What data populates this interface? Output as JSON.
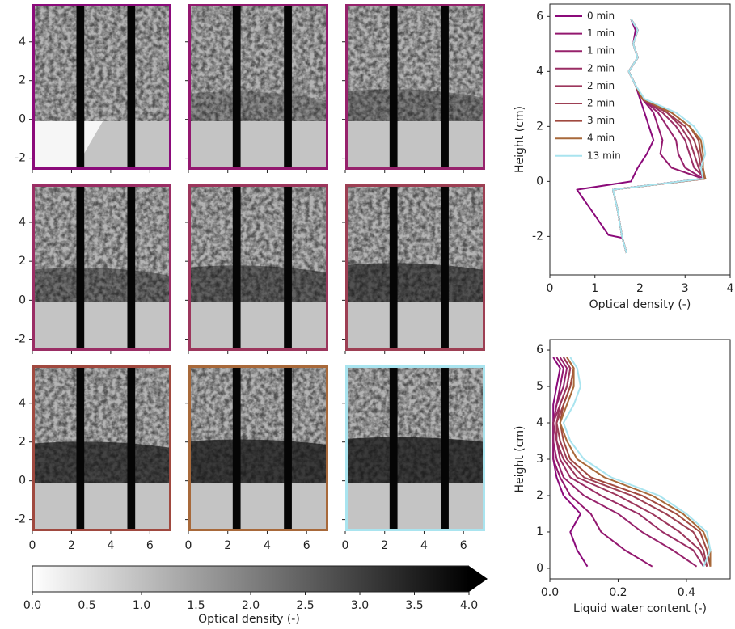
{
  "chart_data": [
    {
      "type": "image",
      "xlim": [
        0,
        7.1
      ],
      "ylim": [
        -2.6,
        5.95
      ],
      "xticks": [
        0,
        2,
        4,
        6
      ],
      "yticks": [
        -2,
        0,
        2,
        4
      ],
      "panel_colors": [
        "#8b0a7a",
        "#93186f",
        "#97226c",
        "#9a2d64",
        "#9c365c",
        "#9d3f53",
        "#a0493f",
        "#a8693a",
        "#a9e4ef"
      ]
    },
    {
      "type": "colorbar",
      "xlim": [
        0,
        4
      ],
      "label": "Optical density (-)",
      "xticks": [
        {
          "value": 0,
          "label": "0.0"
        },
        0.5,
        {
          "value": 1,
          "label": "1.0"
        },
        1.5,
        {
          "value": 2,
          "label": "2.0"
        },
        2.5,
        {
          "value": 3,
          "label": "3.0"
        },
        3.5,
        {
          "value": 4,
          "label": "4.0"
        }
      ]
    },
    {
      "type": "line",
      "xlabel": "Optical density (-)",
      "ylabel": "Height (cm)",
      "xlim": [
        0,
        4
      ],
      "ylim": [
        -3.4,
        6.45
      ],
      "xticks": [
        0,
        1,
        2,
        3,
        4
      ],
      "yticks": [
        -2,
        0,
        2,
        4,
        6
      ],
      "legend": "upper left",
      "series": [
        {
          "name": "0 min",
          "color": "#8b0a7a",
          "y": [
            5.9,
            5.5,
            5,
            4.5,
            4,
            3.5,
            3,
            2.5,
            2,
            1.5,
            1,
            0.5,
            0,
            -0.3,
            -1,
            -1.95,
            -2.05
          ],
          "x": [
            1.8,
            1.9,
            1.85,
            1.95,
            1.75,
            1.9,
            2.0,
            2.1,
            2.2,
            2.3,
            2.15,
            1.95,
            1.8,
            0.6,
            0.9,
            1.3,
            1.6
          ]
        },
        {
          "name": "1 min",
          "color": "#93186f",
          "y": [
            5.9,
            5.5,
            5,
            4.5,
            4,
            3.5,
            3,
            2.5,
            2,
            1.5,
            1,
            0.5,
            0.1,
            -0.3,
            -1,
            -2,
            -2.6
          ],
          "x": [
            1.8,
            1.95,
            1.85,
            1.95,
            1.75,
            1.9,
            2.05,
            2.3,
            2.4,
            2.5,
            2.45,
            2.7,
            3.4,
            1.4,
            1.5,
            1.6,
            1.7
          ]
        },
        {
          "name": "1 min",
          "color": "#97226c",
          "y": [
            5.9,
            5.5,
            5,
            4.5,
            4,
            3.5,
            3,
            2.5,
            2,
            1.5,
            1,
            0.5,
            0.1,
            -0.3,
            -1,
            -2,
            -2.6
          ],
          "x": [
            1.8,
            1.95,
            1.85,
            1.95,
            1.75,
            1.9,
            2.05,
            2.4,
            2.6,
            2.8,
            2.85,
            3.0,
            3.4,
            1.4,
            1.5,
            1.6,
            1.7
          ]
        },
        {
          "name": "2 min",
          "color": "#9a2d64",
          "y": [
            5.9,
            5.5,
            5,
            4.5,
            4,
            3.5,
            3,
            2.5,
            2,
            1.5,
            1,
            0.5,
            0.1,
            -0.3,
            -1,
            -2,
            -2.6
          ],
          "x": [
            1.8,
            1.95,
            1.85,
            1.95,
            1.75,
            1.9,
            2.05,
            2.5,
            2.8,
            3.0,
            3.1,
            3.2,
            3.45,
            1.4,
            1.5,
            1.6,
            1.7
          ]
        },
        {
          "name": "2 min",
          "color": "#9c365c",
          "y": [
            5.9,
            5.5,
            5,
            4.5,
            4,
            3.5,
            3,
            2.5,
            2,
            1.5,
            1,
            0.5,
            0.1,
            -0.3,
            -1,
            -2,
            -2.6
          ],
          "x": [
            1.8,
            1.95,
            1.85,
            1.95,
            1.75,
            1.9,
            2.05,
            2.6,
            2.9,
            3.1,
            3.2,
            3.3,
            3.4,
            1.4,
            1.5,
            1.6,
            1.7
          ]
        },
        {
          "name": "2 min",
          "color": "#9d3f53",
          "y": [
            5.9,
            5.5,
            5,
            4.5,
            4,
            3.5,
            3,
            2.5,
            2,
            1.5,
            1,
            0.5,
            0.1,
            -0.3,
            -1,
            -2,
            -2.6
          ],
          "x": [
            1.8,
            1.95,
            1.85,
            1.95,
            1.75,
            1.9,
            2.05,
            2.6,
            3.0,
            3.2,
            3.3,
            3.35,
            3.45,
            1.4,
            1.5,
            1.6,
            1.7
          ]
        },
        {
          "name": "3 min",
          "color": "#a0493f",
          "y": [
            5.9,
            5.5,
            5,
            4.5,
            4,
            3.5,
            3,
            2.5,
            2,
            1.5,
            1,
            0.5,
            0.1,
            -0.3,
            -1,
            -2,
            -2.6
          ],
          "x": [
            1.8,
            1.95,
            1.85,
            1.95,
            1.75,
            1.9,
            2.05,
            2.7,
            3.1,
            3.3,
            3.35,
            3.4,
            3.4,
            1.4,
            1.5,
            1.6,
            1.7
          ]
        },
        {
          "name": "4 min",
          "color": "#a8693a",
          "y": [
            5.9,
            5.5,
            5,
            4.5,
            4,
            3.5,
            3,
            2.5,
            2,
            1.5,
            1,
            0.5,
            0.1,
            -0.3,
            -1,
            -2,
            -2.6
          ],
          "x": [
            1.8,
            1.95,
            1.85,
            1.95,
            1.75,
            1.9,
            2.05,
            2.7,
            3.1,
            3.35,
            3.4,
            3.4,
            3.45,
            1.4,
            1.5,
            1.6,
            1.7
          ]
        },
        {
          "name": "13 min",
          "color": "#a9e4ef",
          "y": [
            5.9,
            5.5,
            5,
            4.5,
            4,
            3.5,
            3,
            2.5,
            2,
            1.5,
            1,
            0.5,
            0.1,
            -0.3,
            -1,
            -2,
            -2.6
          ],
          "x": [
            1.8,
            1.95,
            1.85,
            1.95,
            1.75,
            1.9,
            2.1,
            2.8,
            3.2,
            3.4,
            3.45,
            3.35,
            3.4,
            1.4,
            1.5,
            1.6,
            1.7
          ]
        }
      ]
    },
    {
      "type": "line",
      "xlabel": "Liquid water content (-)",
      "ylabel": "Height (cm)",
      "xlim": [
        0,
        0.528
      ],
      "ylim": [
        -0.29,
        6.29
      ],
      "xticks": [
        {
          "value": 0,
          "label": "0.0"
        },
        0.2,
        0.4
      ],
      "yticks": [
        0,
        1,
        2,
        3,
        4,
        5,
        6
      ],
      "series": [
        {
          "name": "0 min",
          "color": "#8b0a7a",
          "y": [
            0.05,
            0.5,
            1,
            1.5,
            2,
            2.5,
            3,
            3.5,
            4,
            4.5,
            5,
            5.5,
            5.8
          ],
          "x": [
            0.11,
            0.08,
            0.06,
            0.09,
            0.04,
            0.02,
            0.01,
            0.01,
            0.01,
            0.01,
            0.02,
            0.03,
            0.01
          ]
        },
        {
          "name": "1 min",
          "color": "#93186f",
          "y": [
            0.05,
            0.5,
            1,
            1.5,
            2,
            2.5,
            3,
            3.5,
            4,
            4.5,
            5,
            5.5,
            5.8
          ],
          "x": [
            0.3,
            0.22,
            0.15,
            0.12,
            0.06,
            0.03,
            0.01,
            0.01,
            0.01,
            0.02,
            0.03,
            0.04,
            0.02
          ]
        },
        {
          "name": "1 min",
          "color": "#97226c",
          "y": [
            0.05,
            0.5,
            1,
            1.5,
            2,
            2.5,
            3,
            3.5,
            4,
            4.5,
            5,
            5.5,
            5.8
          ],
          "x": [
            0.43,
            0.36,
            0.27,
            0.2,
            0.1,
            0.04,
            0.02,
            0.01,
            0.01,
            0.02,
            0.04,
            0.05,
            0.03
          ]
        },
        {
          "name": "2 min",
          "color": "#9a2d64",
          "y": [
            0.05,
            0.5,
            1,
            1.5,
            2,
            2.5,
            3,
            3.5,
            4,
            4.5,
            5,
            5.5,
            5.8
          ],
          "x": [
            0.45,
            0.42,
            0.33,
            0.26,
            0.15,
            0.06,
            0.03,
            0.02,
            0.01,
            0.03,
            0.05,
            0.06,
            0.04
          ]
        },
        {
          "name": "2 min",
          "color": "#9c365c",
          "y": [
            0.05,
            0.5,
            1,
            1.5,
            2,
            2.5,
            3,
            3.5,
            4,
            4.5,
            5,
            5.5,
            5.8
          ],
          "x": [
            0.46,
            0.44,
            0.38,
            0.3,
            0.2,
            0.08,
            0.04,
            0.02,
            0.02,
            0.03,
            0.05,
            0.06,
            0.04
          ]
        },
        {
          "name": "2 min",
          "color": "#9d3f53",
          "y": [
            0.05,
            0.5,
            1,
            1.5,
            2,
            2.5,
            3,
            3.5,
            4,
            4.5,
            5,
            5.5,
            5.8
          ],
          "x": [
            0.46,
            0.45,
            0.42,
            0.34,
            0.24,
            0.1,
            0.05,
            0.03,
            0.02,
            0.04,
            0.06,
            0.07,
            0.05
          ]
        },
        {
          "name": "3 min",
          "color": "#a0493f",
          "y": [
            0.05,
            0.5,
            1,
            1.5,
            2,
            2.5,
            3,
            3.5,
            4,
            4.5,
            5,
            5.5,
            5.8
          ],
          "x": [
            0.47,
            0.46,
            0.44,
            0.37,
            0.27,
            0.12,
            0.06,
            0.04,
            0.03,
            0.04,
            0.06,
            0.07,
            0.05
          ]
        },
        {
          "name": "4 min",
          "color": "#a8693a",
          "y": [
            0.05,
            0.5,
            1,
            1.5,
            2,
            2.5,
            3,
            3.5,
            4,
            4.5,
            5,
            5.5,
            5.8
          ],
          "x": [
            0.47,
            0.47,
            0.45,
            0.39,
            0.3,
            0.16,
            0.08,
            0.05,
            0.03,
            0.05,
            0.07,
            0.07,
            0.05
          ]
        },
        {
          "name": "13 min",
          "color": "#a9e4ef",
          "y": [
            0.05,
            0.5,
            1,
            1.5,
            2,
            2.5,
            3,
            3.5,
            4,
            4.5,
            5,
            5.5,
            5.8
          ],
          "x": [
            0.45,
            0.47,
            0.46,
            0.4,
            0.32,
            0.18,
            0.1,
            0.06,
            0.04,
            0.07,
            0.09,
            0.08,
            0.06
          ]
        }
      ]
    }
  ]
}
